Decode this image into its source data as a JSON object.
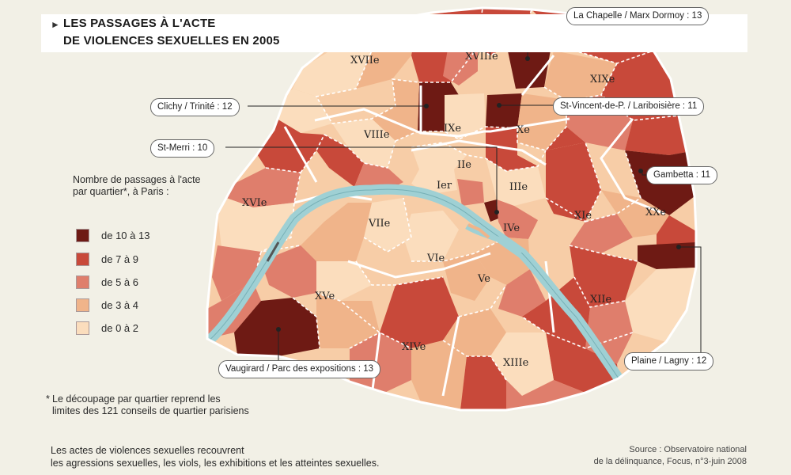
{
  "title": {
    "arrow_icon": "triangle-right-icon",
    "line1": "LES PASSAGES À L'ACTE",
    "line2": "DE VIOLENCES SEXUELLES EN 2005"
  },
  "legend": {
    "title": "Nombre de passages à l'acte par quartier*, à Paris :",
    "items": [
      {
        "label": "de 10 à 13",
        "color": "#6e1a14"
      },
      {
        "label": "de 7 à 9",
        "color": "#c8493a"
      },
      {
        "label": "de 5 à 6",
        "color": "#df7e6c"
      },
      {
        "label": "de 3 à 4",
        "color": "#f0b48a"
      },
      {
        "label": "de 0 à 2",
        "color": "#fbddbd"
      }
    ]
  },
  "arrondissements": [
    "XVIIe",
    "XVIIIe",
    "XIXe",
    "IXe",
    "Xe",
    "VIIIe",
    "IIe",
    "Ier",
    "IIIe",
    "XVIe",
    "VIIe",
    "IVe",
    "XIe",
    "XXe",
    "VIe",
    "Ve",
    "XVe",
    "XIIe",
    "XIVe",
    "XIIIe"
  ],
  "callouts": [
    {
      "label": "La Chapelle / Marx Dormoy : 13"
    },
    {
      "label": "Clichy / Trinité : 12"
    },
    {
      "label": "St-Vincent-de-P. / Lariboisière : 11"
    },
    {
      "label": "St-Merri : 10"
    },
    {
      "label": "Gambetta : 11"
    },
    {
      "label": "Vaugirard / Parc des expositions : 13"
    },
    {
      "label": "Plaine / Lagny : 12"
    }
  ],
  "footnote": {
    "star": "*",
    "text": "Le découpage par quartier reprend les limites des 121 conseils de quartier parisiens"
  },
  "note": {
    "line1": "Les actes de violences sexuelles recouvrent",
    "line2": "les agressions sexuelles, les viols, les exhibitions et les atteintes sexuelles."
  },
  "source": {
    "line1": "Source : Observatoire national",
    "line2": "de la délinquance, Focus, n°3-juin 2008"
  },
  "colors": {
    "river": "#9fd0d4",
    "background": "#f2f0e6"
  }
}
